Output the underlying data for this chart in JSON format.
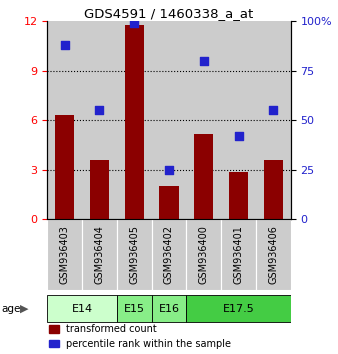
{
  "title": "GDS4591 / 1460338_a_at",
  "samples": [
    "GSM936403",
    "GSM936404",
    "GSM936405",
    "GSM936402",
    "GSM936400",
    "GSM936401",
    "GSM936406"
  ],
  "transformed_counts": [
    6.3,
    3.6,
    11.8,
    2.0,
    5.2,
    2.9,
    3.6
  ],
  "percentile_ranks": [
    88,
    55,
    99,
    25,
    80,
    42,
    55
  ],
  "bar_color": "#8B0000",
  "dot_color": "#2222CC",
  "left_ylim": [
    0,
    12
  ],
  "right_ylim": [
    0,
    100
  ],
  "left_yticks": [
    0,
    3,
    6,
    9,
    12
  ],
  "right_yticks": [
    0,
    25,
    50,
    75,
    100
  ],
  "right_yticklabels": [
    "0",
    "25",
    "50",
    "75",
    "100%"
  ],
  "dotted_lines": [
    3,
    6,
    9
  ],
  "age_groups": [
    {
      "label": "E14",
      "start": 0,
      "end": 2,
      "color": "#ccffcc"
    },
    {
      "label": "E15",
      "start": 2,
      "end": 3,
      "color": "#88ee88"
    },
    {
      "label": "E16",
      "start": 3,
      "end": 4,
      "color": "#88ee88"
    },
    {
      "label": "E17.5",
      "start": 4,
      "end": 7,
      "color": "#44cc44"
    }
  ],
  "legend_red_label": "transformed count",
  "legend_blue_label": "percentile rank within the sample",
  "age_label": "age",
  "bar_width": 0.55,
  "sample_bg_color": "#cccccc",
  "plot_bg_color": "#ffffff"
}
